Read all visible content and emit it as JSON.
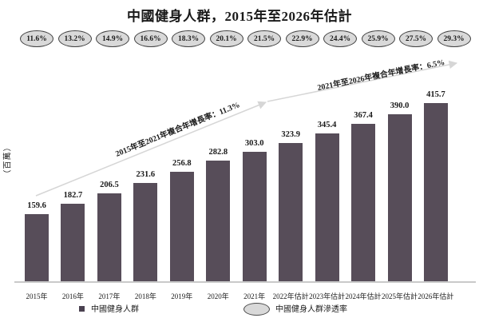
{
  "title": "中國健身人群，2015年至2026年估計",
  "y_axis_unit": "（百萬）",
  "legend": {
    "bar_series_label": "中國健身人群",
    "oval_series_label": "中國健身人群滲透率"
  },
  "colors": {
    "bar": "#574d59",
    "legend_square": "#4a4150",
    "oval_fill": "#d9d9d9",
    "oval_border": "#3f3f3f",
    "arrow": "#d6d6d6",
    "axis": "#c9c9c9",
    "text": "#1a1a1a"
  },
  "chart_data": {
    "type": "bar",
    "title": "中國健身人群，2015年至2026年估計",
    "xlabel": "",
    "ylabel": "（百萬）",
    "ylim": [
      0,
      430
    ],
    "grid": false,
    "legend_position": "bottom",
    "categories": [
      "2015年",
      "2016年",
      "2017年",
      "2018年",
      "2019年",
      "2020年",
      "2021年",
      "2022年估計",
      "2023年估計",
      "2024年估計",
      "2025年估計",
      "2026年估計"
    ],
    "series": [
      {
        "name": "中國健身人群",
        "type": "bar",
        "unit": "百萬",
        "values": [
          159.6,
          182.7,
          206.5,
          231.6,
          256.8,
          282.8,
          303.0,
          323.9,
          345.4,
          367.4,
          390.0,
          415.7
        ],
        "value_labels": [
          "159.6",
          "182.7",
          "206.5",
          "231.6",
          "256.8",
          "282.8",
          "303.0",
          "323.9",
          "345.4",
          "367.4",
          "390.0",
          "415.7"
        ]
      },
      {
        "name": "中國健身人群滲透率",
        "type": "percent-markers",
        "values": [
          11.6,
          13.2,
          14.9,
          16.6,
          18.3,
          20.1,
          21.5,
          22.9,
          24.4,
          25.9,
          27.5,
          29.3
        ],
        "value_labels": [
          "11.6%",
          "13.2%",
          "14.9%",
          "16.6%",
          "18.3%",
          "20.1%",
          "21.5%",
          "22.9%",
          "24.4%",
          "25.9%",
          "27.5%",
          "29.3%"
        ]
      }
    ],
    "annotations": [
      "2015年至2021年複合年增長率：11.3%",
      "2021年至2026年複合年增長率：6.5%"
    ]
  }
}
